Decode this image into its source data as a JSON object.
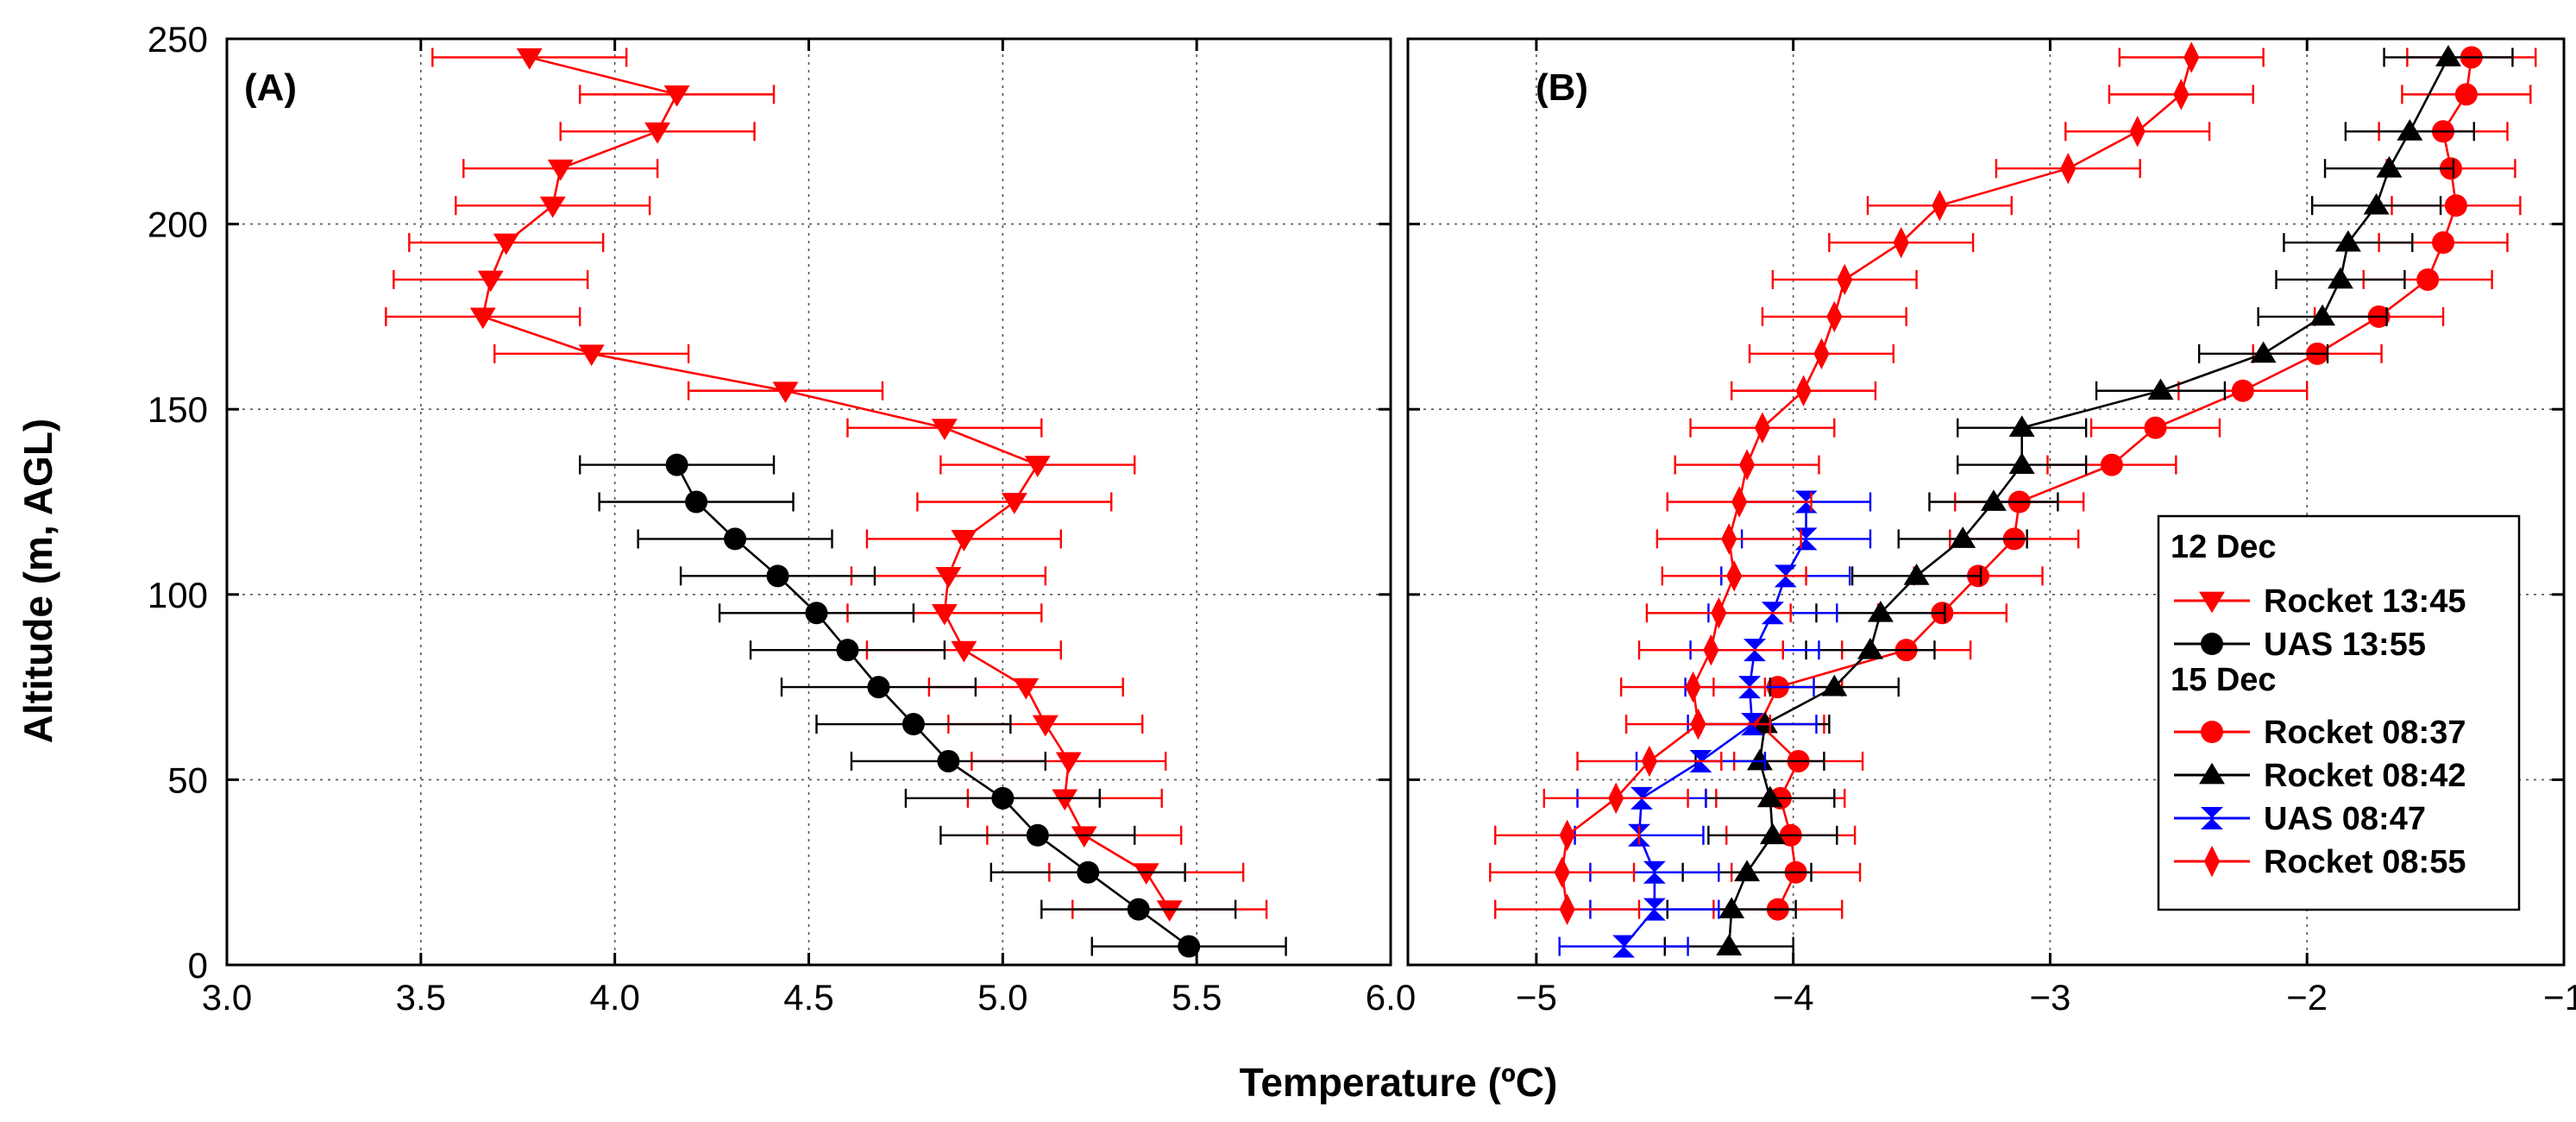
{
  "chart_data": [
    {
      "type": "line",
      "panel_label": "(A)",
      "xlabel": "Temperature (ºC)",
      "ylabel": "Altitude (m, AGL)",
      "xlim": [
        3.0,
        6.0
      ],
      "ylim": [
        0,
        250
      ],
      "x_ticks": [
        3.0,
        3.5,
        4.0,
        4.5,
        5.0,
        5.5,
        6.0
      ],
      "x_tick_labels": [
        "3.0",
        "3.5",
        "4.0",
        "4.5",
        "5.0",
        "5.5",
        "6.0"
      ],
      "y_ticks": [
        0,
        50,
        100,
        150,
        200,
        250
      ],
      "y_tick_labels": [
        "0",
        "50",
        "100",
        "150",
        "200",
        "250"
      ],
      "grid": true,
      "series": [
        {
          "name": "Rocket 13:45",
          "date": "12 Dec",
          "color": "#ff0000",
          "marker": "triangle-down",
          "altitude": [
            245,
            235,
            225,
            215,
            205,
            195,
            185,
            175,
            165,
            155,
            145,
            135,
            125,
            115,
            105,
            95,
            85,
            75,
            65,
            55,
            45,
            35,
            25,
            15
          ],
          "temperature": [
            3.78,
            4.16,
            4.11,
            3.86,
            3.84,
            3.72,
            3.68,
            3.66,
            3.94,
            4.44,
            4.85,
            5.09,
            5.03,
            4.9,
            4.86,
            4.85,
            4.9,
            5.06,
            5.11,
            5.17,
            5.16,
            5.21,
            5.37,
            5.43
          ],
          "error": 0.25
        },
        {
          "name": "UAS 13:55",
          "date": "12 Dec",
          "color": "#000000",
          "marker": "circle",
          "altitude": [
            135,
            125,
            115,
            105,
            95,
            85,
            75,
            65,
            55,
            45,
            35,
            25,
            15,
            5
          ],
          "temperature": [
            4.16,
            4.21,
            4.31,
            4.42,
            4.52,
            4.6,
            4.68,
            4.77,
            4.86,
            5.0,
            5.09,
            5.22,
            5.35,
            5.48
          ],
          "error": 0.25
        }
      ]
    },
    {
      "type": "line",
      "panel_label": "(B)",
      "xlim": [
        -5.5,
        -1.0
      ],
      "ylim": [
        0,
        250
      ],
      "x_ticks": [
        -5,
        -4,
        -3,
        -2,
        -1
      ],
      "x_tick_labels": [
        "−5",
        "−4",
        "−3",
        "−2",
        "−1"
      ],
      "grid": true,
      "series": [
        {
          "name": "Rocket 08:37",
          "date": "15 Dec",
          "color": "#ff0000",
          "marker": "circle",
          "altitude": [
            245,
            235,
            225,
            215,
            205,
            195,
            185,
            175,
            165,
            155,
            145,
            135,
            125,
            115,
            105,
            95,
            85,
            75,
            65,
            55,
            45,
            35,
            25,
            15
          ],
          "temperature": [
            -1.36,
            -1.38,
            -1.47,
            -1.44,
            -1.42,
            -1.47,
            -1.53,
            -1.72,
            -1.96,
            -2.25,
            -2.59,
            -2.76,
            -3.12,
            -3.14,
            -3.28,
            -3.42,
            -3.56,
            -4.06,
            -4.13,
            -3.98,
            -4.05,
            -4.01,
            -3.99,
            -4.06
          ],
          "error": 0.25
        },
        {
          "name": "Rocket 08:42",
          "date": "15 Dec",
          "color": "#000000",
          "marker": "triangle-up",
          "altitude": [
            245,
            225,
            215,
            205,
            195,
            185,
            175,
            165,
            155,
            145,
            135,
            125,
            115,
            105,
            95,
            85,
            75,
            65,
            55,
            45,
            35,
            25,
            15,
            5
          ],
          "temperature": [
            -1.45,
            -1.6,
            -1.68,
            -1.73,
            -1.84,
            -1.87,
            -1.94,
            -2.17,
            -2.57,
            -3.11,
            -3.11,
            -3.22,
            -3.34,
            -3.52,
            -3.66,
            -3.7,
            -3.84,
            -4.11,
            -4.13,
            -4.09,
            -4.08,
            -4.18,
            -4.24,
            -4.25
          ],
          "error": 0.25
        },
        {
          "name": "UAS 08:47",
          "date": "15 Dec",
          "color": "#0000ff",
          "marker": "hourglass",
          "altitude": [
            125,
            115,
            105,
            95,
            85,
            75,
            65,
            55,
            45,
            35,
            25,
            15,
            5
          ],
          "temperature": [
            -3.95,
            -3.95,
            -4.03,
            -4.08,
            -4.15,
            -4.17,
            -4.16,
            -4.36,
            -4.59,
            -4.6,
            -4.54,
            -4.54,
            -4.66
          ],
          "error": 0.25
        },
        {
          "name": "Rocket 08:55",
          "date": "15 Dec",
          "color": "#ff0000",
          "marker": "diamond",
          "altitude": [
            245,
            235,
            225,
            215,
            205,
            195,
            185,
            175,
            165,
            155,
            145,
            135,
            125,
            115,
            105,
            95,
            85,
            75,
            65,
            55,
            45,
            35,
            25,
            15
          ],
          "temperature": [
            -2.45,
            -2.49,
            -2.66,
            -2.93,
            -3.43,
            -3.58,
            -3.8,
            -3.84,
            -3.89,
            -3.96,
            -4.12,
            -4.18,
            -4.21,
            -4.25,
            -4.23,
            -4.29,
            -4.32,
            -4.39,
            -4.37,
            -4.56,
            -4.69,
            -4.88,
            -4.9,
            -4.88
          ],
          "error": 0.28
        }
      ]
    }
  ],
  "legend": {
    "groups": [
      {
        "title": "12 Dec",
        "entries": [
          {
            "label": "Rocket 13:45",
            "color": "#ff0000",
            "marker": "triangle-down"
          },
          {
            "label": "UAS 13:55",
            "color": "#000000",
            "marker": "circle"
          }
        ]
      },
      {
        "title": "15 Dec",
        "entries": [
          {
            "label": "Rocket 08:37",
            "color": "#ff0000",
            "marker": "circle"
          },
          {
            "label": "Rocket 08:42",
            "color": "#000000",
            "marker": "triangle-up"
          },
          {
            "label": "UAS 08:47",
            "color": "#0000ff",
            "marker": "hourglass"
          },
          {
            "label": "Rocket 08:55",
            "color": "#ff0000",
            "marker": "diamond"
          }
        ]
      }
    ]
  }
}
